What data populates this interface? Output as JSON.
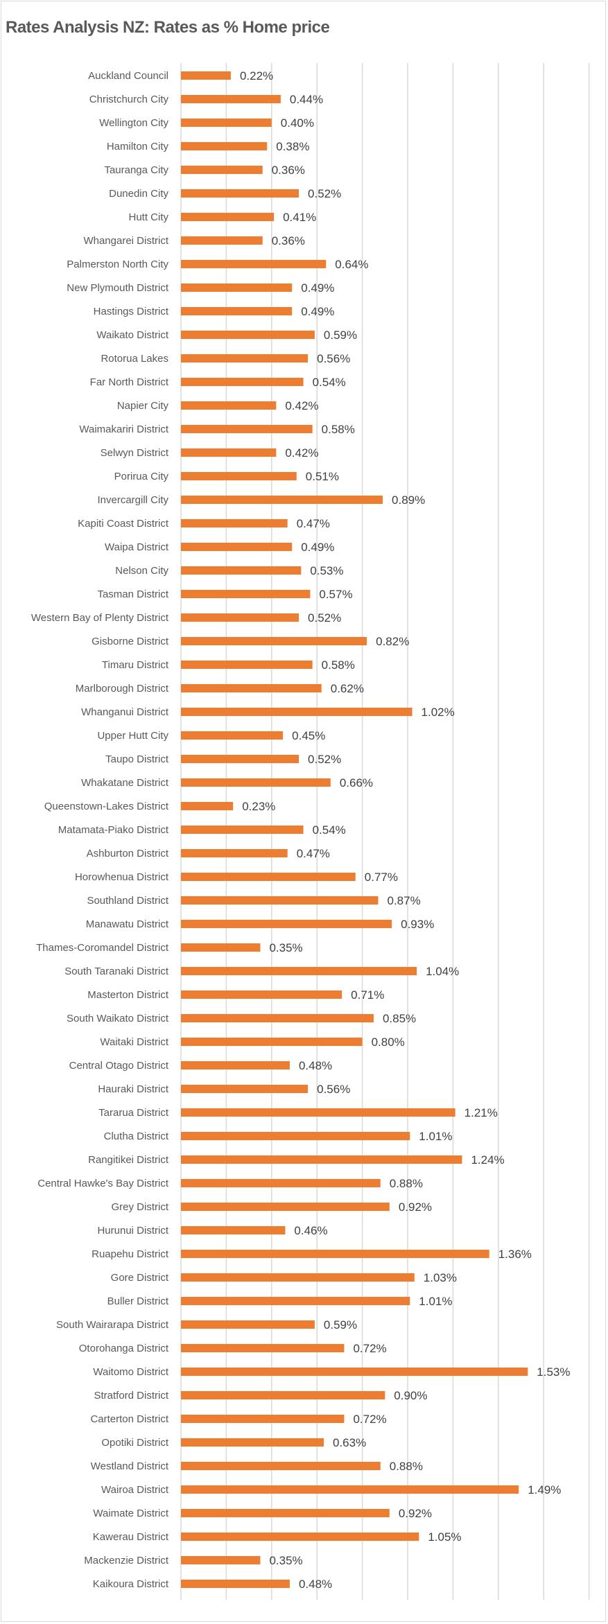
{
  "chart_data": {
    "type": "bar",
    "orientation": "horizontal",
    "title": "Rates Analysis NZ: Rates as % Home price",
    "xlabel": "",
    "ylabel": "",
    "xlim": [
      0,
      1.8
    ],
    "grid_step": 0.2,
    "grid": true,
    "axis_tick_labels_visible": false,
    "legend": "none",
    "bar_color": "#ED7D31",
    "value_format": "percent-2dp",
    "categories": [
      "Auckland Council",
      "Christchurch City",
      "Wellington City",
      "Hamilton City",
      "Tauranga City",
      "Dunedin City",
      "Hutt City",
      "Whangarei District",
      "Palmerston North City",
      "New Plymouth District",
      "Hastings District",
      "Waikato District",
      "Rotorua Lakes",
      "Far North District",
      "Napier City",
      "Waimakariri District",
      "Selwyn District",
      "Porirua City",
      "Invercargill City",
      "Kapiti Coast District",
      "Waipa District",
      "Nelson City",
      "Tasman District",
      "Western Bay of Plenty District",
      "Gisborne District",
      "Timaru District",
      "Marlborough District",
      "Whanganui District",
      "Upper Hutt City",
      "Taupo District",
      "Whakatane District",
      "Queenstown-Lakes District",
      "Matamata-Piako District",
      "Ashburton District",
      "Horowhenua District",
      "Southland District",
      "Manawatu District",
      "Thames-Coromandel District",
      "South Taranaki District",
      "Masterton District",
      "South Waikato District",
      "Waitaki District",
      "Central Otago District",
      "Hauraki District",
      "Tararua District",
      "Clutha District",
      "Rangitikei District",
      "Central Hawke's Bay District",
      "Grey District",
      "Hurunui District",
      "Ruapehu District",
      "Gore District",
      "Buller District",
      "South Wairarapa District",
      "Otorohanga District",
      "Waitomo District",
      "Stratford District",
      "Carterton District",
      "Opotiki District",
      "Westland District",
      "Wairoa District",
      "Waimate District",
      "Kawerau District",
      "Mackenzie District",
      "Kaikoura District"
    ],
    "values": [
      0.22,
      0.44,
      0.4,
      0.38,
      0.36,
      0.52,
      0.41,
      0.36,
      0.64,
      0.49,
      0.49,
      0.59,
      0.56,
      0.54,
      0.42,
      0.58,
      0.42,
      0.51,
      0.89,
      0.47,
      0.49,
      0.53,
      0.57,
      0.52,
      0.82,
      0.58,
      0.62,
      1.02,
      0.45,
      0.52,
      0.66,
      0.23,
      0.54,
      0.47,
      0.77,
      0.87,
      0.93,
      0.35,
      1.04,
      0.71,
      0.85,
      0.8,
      0.48,
      0.56,
      1.21,
      1.01,
      1.24,
      0.88,
      0.92,
      0.46,
      1.36,
      1.03,
      1.01,
      0.59,
      0.72,
      1.53,
      0.9,
      0.72,
      0.63,
      0.88,
      1.49,
      0.92,
      1.05,
      0.35,
      0.48
    ],
    "value_labels": [
      "0.22%",
      "0.44%",
      "0.40%",
      "0.38%",
      "0.36%",
      "0.52%",
      "0.41%",
      "0.36%",
      "0.64%",
      "0.49%",
      "0.49%",
      "0.59%",
      "0.56%",
      "0.54%",
      "0.42%",
      "0.58%",
      "0.42%",
      "0.51%",
      "0.89%",
      "0.47%",
      "0.49%",
      "0.53%",
      "0.57%",
      "0.52%",
      "0.82%",
      "0.58%",
      "0.62%",
      "1.02%",
      "0.45%",
      "0.52%",
      "0.66%",
      "0.23%",
      "0.54%",
      "0.47%",
      "0.77%",
      "0.87%",
      "0.93%",
      "0.35%",
      "1.04%",
      "0.71%",
      "0.85%",
      "0.80%",
      "0.48%",
      "0.56%",
      "1.21%",
      "1.01%",
      "1.24%",
      "0.88%",
      "0.92%",
      "0.46%",
      "1.36%",
      "1.03%",
      "1.01%",
      "0.59%",
      "0.72%",
      "1.53%",
      "0.90%",
      "0.72%",
      "0.63%",
      "0.88%",
      "1.49%",
      "0.92%",
      "1.05%",
      "0.35%",
      "0.48%"
    ]
  }
}
